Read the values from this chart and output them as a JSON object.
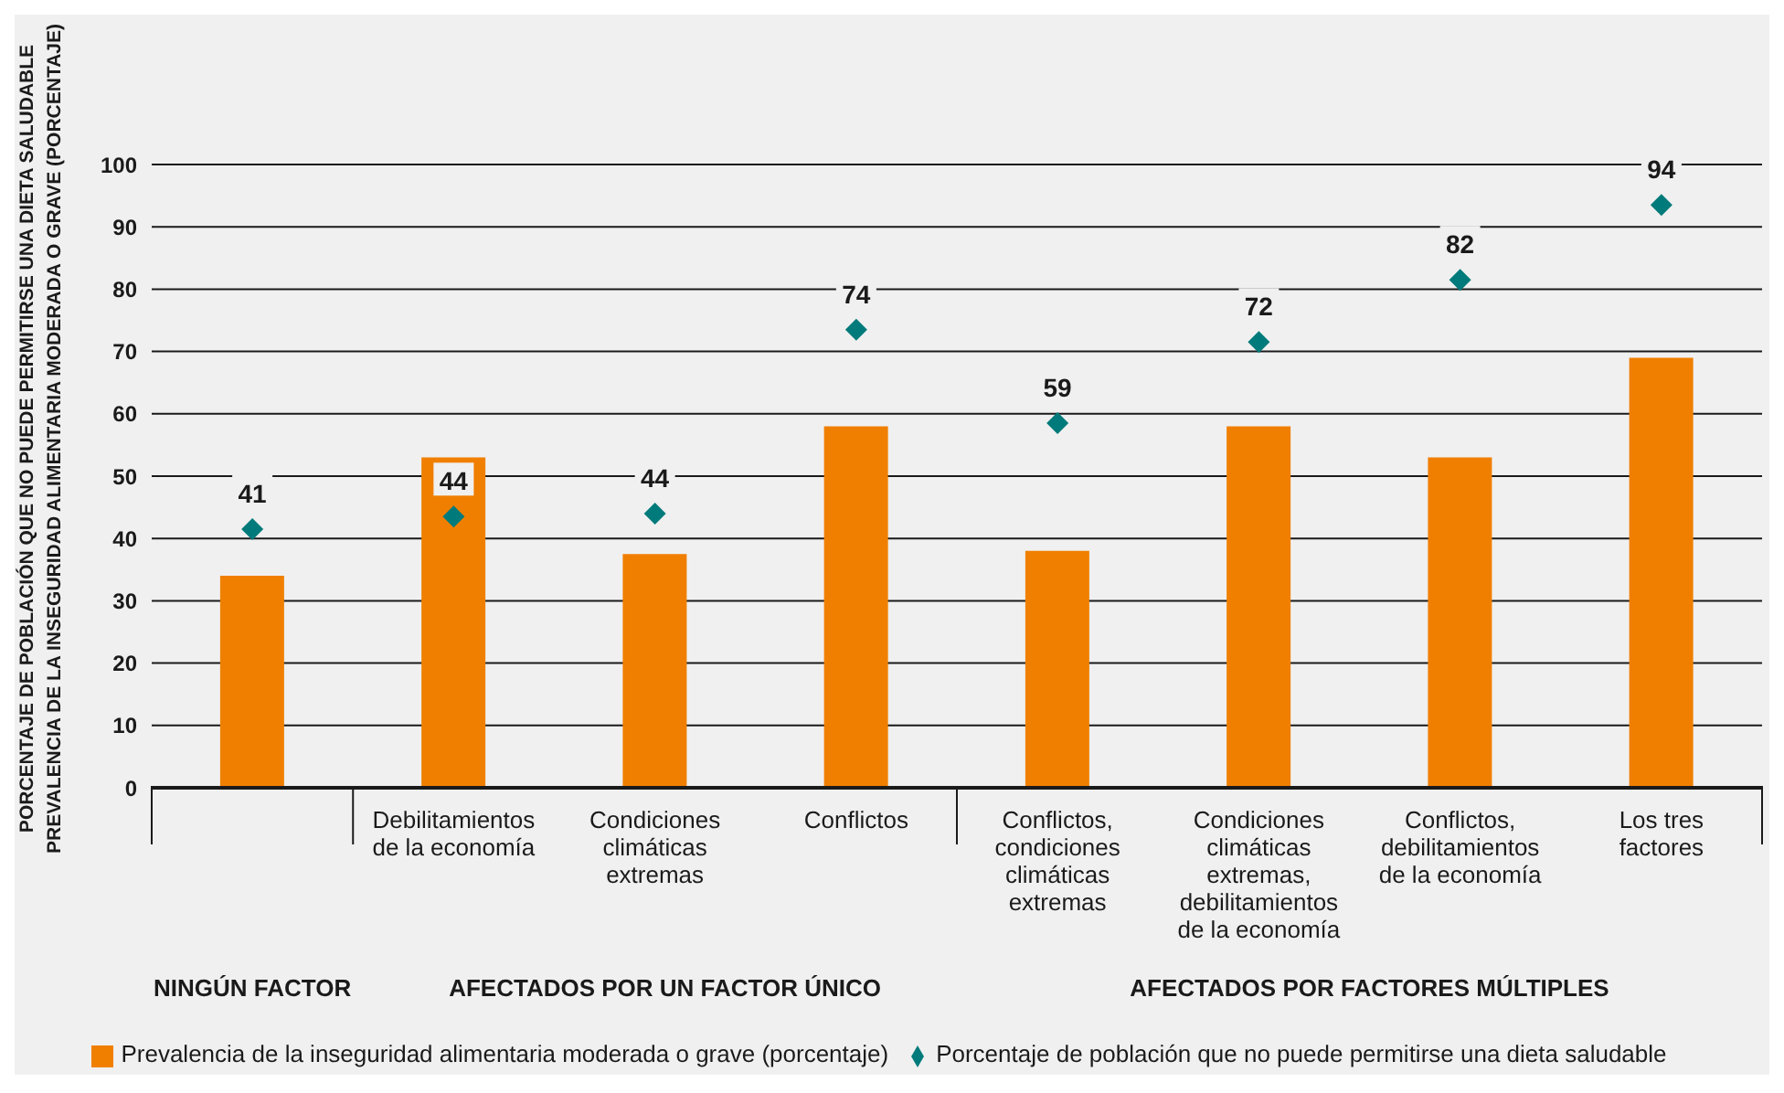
{
  "chart_data": {
    "type": "bar",
    "ylabel": "PORCENTAJE DE POBLACIÓN QUE NO PUEDE PERMITIRSE UNA DIETA SALUDABLE\nPREVALENCIA DE LA INSEGURIDAD ALIMENTARIA MODERADA O GRAVE (PORCENTAJE)",
    "categories": [
      null,
      "Debilitamientos de la economía",
      "Condiciones climáticas extremas",
      "Conflictos",
      "Conflictos, condiciones climáticas extremas",
      "Condiciones climáticas extremas, debilitamientos de la economía",
      "Conflictos, debilitamientos de la economía",
      "Los tres factores"
    ],
    "series": [
      {
        "name": "Prevalencia de la inseguridad alimentaria moderada o grave (porcentaje)",
        "color": "#f07f00",
        "values": [
          34,
          53,
          37.5,
          58,
          38,
          58,
          53,
          69
        ]
      },
      {
        "name": "Porcentaje de población que no puede permitirse una dieta saludable",
        "type": "scatter",
        "marker": "diamond",
        "color": "#007a7a",
        "values": [
          41.5,
          43.5,
          44,
          73.5,
          58.5,
          71.5,
          81.5,
          93.5
        ],
        "value_labels": [
          "41",
          "44",
          "44",
          "74",
          "59",
          "72",
          "82",
          "94"
        ]
      }
    ],
    "ylim": [
      0,
      100
    ],
    "yticks": [
      0,
      10,
      20,
      30,
      40,
      50,
      60,
      70,
      80,
      90,
      100
    ],
    "grid": "y",
    "legend": "bottom",
    "annotations": [
      "NINGÚN FACTOR",
      "AFECTADOS POR UN FACTOR ÚNICO",
      "AFECTADOS POR FACTORES MÚLTIPLES"
    ]
  }
}
